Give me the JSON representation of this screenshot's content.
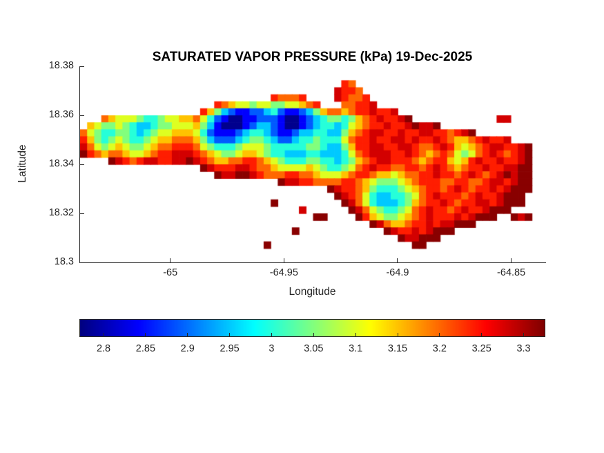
{
  "chart_data": {
    "type": "heatmap",
    "title": "SATURATED VAPOR PRESSURE (kPa) 19-Dec-2025",
    "xlabel": "Longitude",
    "ylabel": "Latitude",
    "xlim": [
      -65.04,
      -64.835
    ],
    "ylim": [
      18.3,
      18.38
    ],
    "x_ticks": [
      -65,
      -64.95,
      -64.9,
      -64.85
    ],
    "x_tick_labels": [
      "-65",
      "-64.95",
      "-64.9",
      "-64.85"
    ],
    "y_ticks": [
      18.38,
      18.36,
      18.34,
      18.32,
      18.3
    ],
    "y_tick_labels": [
      "18.38",
      "18.36",
      "18.34",
      "18.32",
      "18.3"
    ],
    "colormap": "jet",
    "units": "kPa",
    "value_range": [
      2.772,
      3.325
    ],
    "colorbar": {
      "orientation": "horizontal",
      "tick_values": [
        2.8,
        2.85,
        2.9,
        2.95,
        3,
        3.05,
        3.1,
        3.15,
        3.2,
        3.25,
        3.3
      ],
      "tick_labels": [
        "2.8",
        "2.85",
        "2.9",
        "2.95",
        "3",
        "3.05",
        "3.1",
        "3.15",
        "3.2",
        "3.25",
        "3.3"
      ]
    },
    "grid": {
      "description": "Coarse raster of saturated vapor pressure (kPa) over the island; one character per cell, '.' = water / no data",
      "ncols": 66,
      "nrows": 28,
      "legend": {
        "0": 2.78,
        "1": 2.84,
        "2": 2.89,
        "3": 2.95,
        "4": 3.0,
        "5": 3.05,
        "6": 3.1,
        "7": 3.15,
        "8": 3.2,
        "9": 3.24,
        "a": 3.28,
        "b": 3.32,
        ".": null
      },
      "rows": [
        "",
        "",
        ".....................................98",
        "....................................a998",
        "...........................98889....a9889",
        "...................987665665566789...8899a",
        ".................975321122342112357887899a99a",
        "...876665445667786421001122210012345545789a99ab............aa",
        ".765565433455666753100012332100123443467899a99abaab",
        "86544554345667776421112344321123344335789aa99a99aa9989ab",
        "97545654456778887532223455432234454446899a99aa9a99a987789a99a",
        "a8656765567889998654445666544444554335799aa99aa9889a976789aa99ab",
        "b987887667899aaa9876556776544333443334689aaa99a98789865689a989ab",
        "....ba989aa99aaba9877889987654445544345789aa999878997679a99a99ab",
        ".................ba999aa98876666765445689a99889989a987899a99aabb",
        "...................baabba9888998876667899877678899a9989a989ababb",
        "............................baa998888998765556789998899889aa9abb",
        "...................................ba9987544456789989a9899a9abbb",
        "....................................ba986433445689a99989a99abbb",
        "...........................b.........ba864333457899a9899aa9abbb",
        "...............................a......ba865445689a9989a99abbb",
        ".................................bb....b976556789a999a9abbb..bab",
        ".........................................ba877899a9aabbb",
        "..............................b............ba99a9abbb",
        ".............................................baabbb",
        "..........................b....................bb",
        "",
        ""
      ]
    }
  }
}
